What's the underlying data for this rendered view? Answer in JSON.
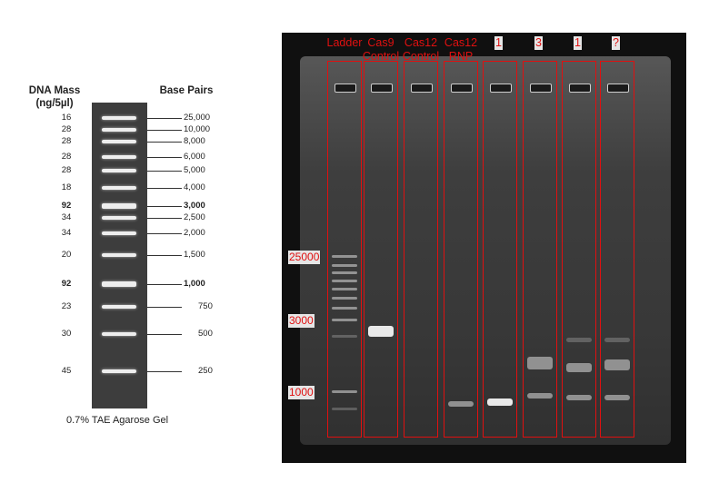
{
  "reference": {
    "dna_mass_header": [
      "DNA Mass",
      "(ng/5µl)"
    ],
    "base_pairs_header": "Base Pairs",
    "rows": [
      {
        "mass": "16",
        "bp": "25,000",
        "bold": false
      },
      {
        "mass": "28",
        "bp": "10,000",
        "bold": false
      },
      {
        "mass": "28",
        "bp": "8,000",
        "bold": false
      },
      {
        "mass": "28",
        "bp": "6,000",
        "bold": false
      },
      {
        "mass": "28",
        "bp": "5,000",
        "bold": false
      },
      {
        "mass": "18",
        "bp": "4,000",
        "bold": false
      },
      {
        "mass": "92",
        "bp": "3,000",
        "bold": true
      },
      {
        "mass": "34",
        "bp": "2,500",
        "bold": false
      },
      {
        "mass": "34",
        "bp": "2,000",
        "bold": false
      },
      {
        "mass": "20",
        "bp": "1,500",
        "bold": false
      },
      {
        "mass": "92",
        "bp": "1,000",
        "bold": true
      },
      {
        "mass": "23",
        "bp": "750",
        "bold": false
      },
      {
        "mass": "30",
        "bp": "500",
        "bold": false
      },
      {
        "mass": "45",
        "bp": "250",
        "bold": false
      }
    ],
    "caption": "0.7% TAE  Agarose Gel"
  },
  "gel": {
    "lanes": [
      {
        "label": [
          "Ladder"
        ]
      },
      {
        "label": [
          "Cas9",
          "Control"
        ]
      },
      {
        "label": [
          "Cas12",
          "Control"
        ]
      },
      {
        "label": [
          "Cas12",
          "RNP"
        ]
      },
      {
        "label": [
          "1"
        ]
      },
      {
        "label": [
          "3"
        ]
      },
      {
        "label": [
          "1"
        ]
      },
      {
        "label": [
          "?"
        ]
      }
    ],
    "size_markers": [
      "25000",
      "3000",
      "1000"
    ]
  }
}
